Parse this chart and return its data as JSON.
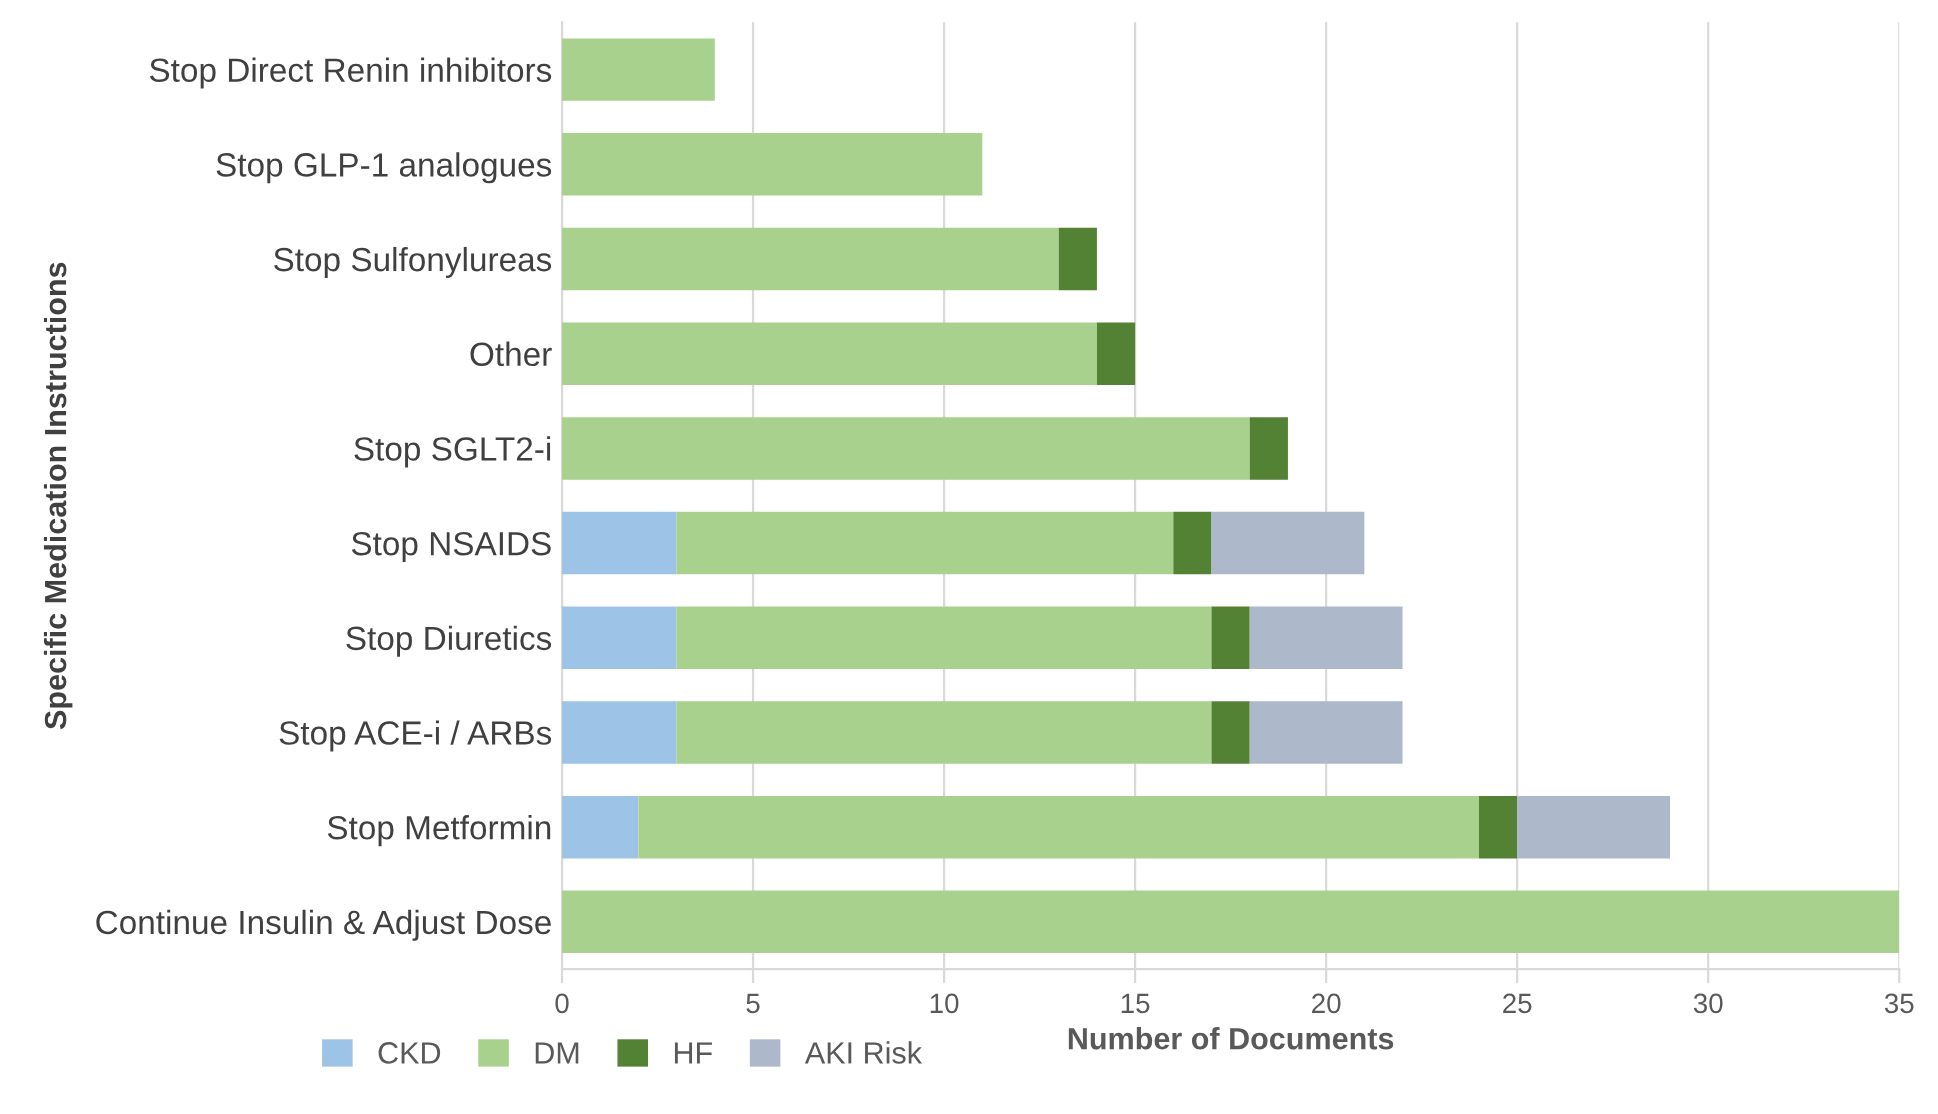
{
  "chart_data": {
    "type": "bar",
    "orientation": "horizontal",
    "stacked": true,
    "xlabel": "Number of Documents",
    "ylabel": "Specific Medication Instructions",
    "categories": [
      "Stop Direct Renin inhibitors",
      "Stop GLP-1 analogues",
      "Stop Sulfonylureas",
      "Other",
      "Stop SGLT2-i",
      "Stop NSAIDS",
      "Stop Diuretics",
      "Stop ACE-i / ARBs",
      "Stop Metformin",
      "Continue Insulin & Adjust Dose"
    ],
    "series": [
      {
        "name": "CKD",
        "color": "#9dc3e6",
        "values": [
          0,
          0,
          0,
          0,
          0,
          3,
          3,
          3,
          2,
          0
        ]
      },
      {
        "name": "DM",
        "color": "#a9d18e",
        "values": [
          4,
          11,
          13,
          14,
          18,
          13,
          14,
          14,
          22,
          35
        ]
      },
      {
        "name": "HF",
        "color": "#548235",
        "values": [
          0,
          0,
          1,
          1,
          1,
          1,
          1,
          1,
          1,
          0
        ]
      },
      {
        "name": "AKI Risk",
        "color": "#adb9ca",
        "values": [
          0,
          0,
          0,
          0,
          0,
          4,
          4,
          4,
          4,
          0
        ]
      }
    ],
    "xlim": [
      0,
      35
    ],
    "xticks": [
      0,
      5,
      10,
      15,
      20,
      25,
      30,
      35
    ],
    "grid": "x",
    "legend": "bottom left"
  }
}
